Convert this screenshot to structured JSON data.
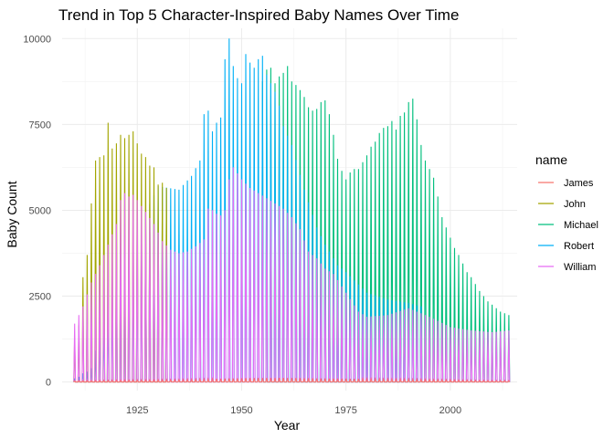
{
  "chart_data": {
    "type": "line",
    "title": "Trend in Top 5 Character-Inspired Baby Names Over Time",
    "xlabel": "Year",
    "ylabel": "Baby Count",
    "xlim": [
      1907,
      2016
    ],
    "ylim": [
      -250,
      10300
    ],
    "x_ticks": [
      1925,
      1950,
      1975,
      2000
    ],
    "x_tick_labels": [
      "1925",
      "1950",
      "1975",
      "2000"
    ],
    "y_ticks": [
      0,
      2500,
      5000,
      7500,
      10000
    ],
    "y_tick_labels": [
      "0",
      "2500",
      "5000",
      "7500",
      "10000"
    ],
    "grid": true,
    "legend": {
      "title": "name",
      "position": "right"
    },
    "series": [
      {
        "name": "James",
        "color": "#F8766D",
        "x": [
          1910,
          1920,
          1930,
          1940,
          1950,
          1960,
          1970,
          1980,
          1990,
          2000,
          2010,
          2014
        ],
        "peak": [
          30,
          50,
          60,
          80,
          110,
          120,
          100,
          90,
          80,
          60,
          40,
          40
        ]
      },
      {
        "name": "John",
        "color": "#A3A500",
        "x": [
          1910,
          1911,
          1912,
          1913,
          1914,
          1915,
          1916,
          1917,
          1918,
          1919,
          1920,
          1921,
          1922,
          1923,
          1924,
          1925,
          1926,
          1927,
          1928,
          1929,
          1930,
          1931,
          1932
        ],
        "peak": [
          1300,
          1650,
          3050,
          3700,
          5200,
          6450,
          6550,
          6600,
          7550,
          6800,
          6950,
          7200,
          7100,
          7200,
          7300,
          6950,
          6650,
          6550,
          6300,
          6250,
          5750,
          5800,
          5650
        ]
      },
      {
        "name": "Michael",
        "color": "#00BF7D",
        "x": [
          1955,
          1956,
          1957,
          1958,
          1959,
          1960,
          1961,
          1962,
          1963,
          1964,
          1965,
          1966,
          1967,
          1968,
          1969,
          1970,
          1971,
          1972,
          1973,
          1974,
          1975,
          1976,
          1977,
          1978,
          1979,
          1980,
          1981,
          1982,
          1983,
          1984,
          1985,
          1986,
          1987,
          1988,
          1989,
          1990,
          1991,
          1992,
          1993,
          1994,
          1995,
          1996,
          1997,
          1998,
          1999,
          2000,
          2001,
          2002,
          2003,
          2004,
          2005,
          2006,
          2007,
          2008,
          2009,
          2010,
          2011,
          2012,
          2013,
          2014
        ],
        "peak": [
          8750,
          9100,
          9150,
          8700,
          8900,
          9000,
          9200,
          8750,
          8650,
          8500,
          8300,
          8000,
          7900,
          7950,
          8150,
          8200,
          7800,
          7200,
          6500,
          6150,
          5900,
          6100,
          6200,
          6200,
          6400,
          6600,
          6850,
          7000,
          7250,
          7400,
          7450,
          7600,
          7350,
          7750,
          7850,
          8150,
          8250,
          7650,
          6900,
          6450,
          6200,
          5950,
          5400,
          4800,
          4500,
          4200,
          3900,
          3700,
          3450,
          3200,
          3050,
          2850,
          2650,
          2500,
          2350,
          2250,
          2150,
          2050,
          2000,
          1950
        ]
      },
      {
        "name": "Robert",
        "color": "#00B0F6",
        "x": [
          1910,
          1911,
          1912,
          1913,
          1914,
          1920,
          1925,
          1930,
          1935,
          1938,
          1940,
          1941,
          1942,
          1943,
          1944,
          1945,
          1946,
          1947,
          1948,
          1949,
          1950,
          1951,
          1952,
          1953,
          1954,
          1955,
          1956,
          1957,
          1958,
          1959,
          1960,
          1962,
          1965,
          1968,
          1970,
          1973,
          1975,
          1980,
          1985,
          1990,
          1993
        ],
        "peak": [
          100,
          150,
          250,
          300,
          400,
          3500,
          4400,
          5700,
          5600,
          6000,
          6450,
          7800,
          7900,
          7300,
          7550,
          7700,
          9400,
          10000,
          9200,
          8850,
          8700,
          9550,
          9300,
          9150,
          9400,
          9500,
          8950,
          8700,
          8450,
          8050,
          7450,
          6900,
          5600,
          4500,
          4000,
          3400,
          3200,
          2600,
          2400,
          2300,
          2200
        ]
      },
      {
        "name": "William",
        "color": "#E76BF3",
        "x": [
          1910,
          1912,
          1914,
          1916,
          1918,
          1920,
          1921,
          1922,
          1923,
          1924,
          1925,
          1927,
          1929,
          1931,
          1933,
          1935,
          1937,
          1939,
          1941,
          1942,
          1943,
          1944,
          1945,
          1946,
          1947,
          1948,
          1950,
          1952,
          1954,
          1956,
          1958,
          1960,
          1962,
          1964,
          1966,
          1968,
          1970,
          1972,
          1975,
          1978,
          1980,
          1985,
          1990,
          1995,
          2000,
          2005,
          2010,
          2014
        ],
        "peak": [
          1700,
          2200,
          2900,
          3400,
          4000,
          4600,
          5300,
          5500,
          5400,
          5450,
          5300,
          4950,
          4600,
          4100,
          3850,
          3750,
          3800,
          3950,
          4150,
          5050,
          5000,
          4900,
          4850,
          5000,
          5900,
          6250,
          5900,
          5650,
          5500,
          5350,
          5200,
          5050,
          4800,
          4450,
          3800,
          3600,
          3300,
          3150,
          2600,
          2050,
          1900,
          1950,
          2150,
          1900,
          1600,
          1500,
          1450,
          1500
        ]
      }
    ]
  }
}
